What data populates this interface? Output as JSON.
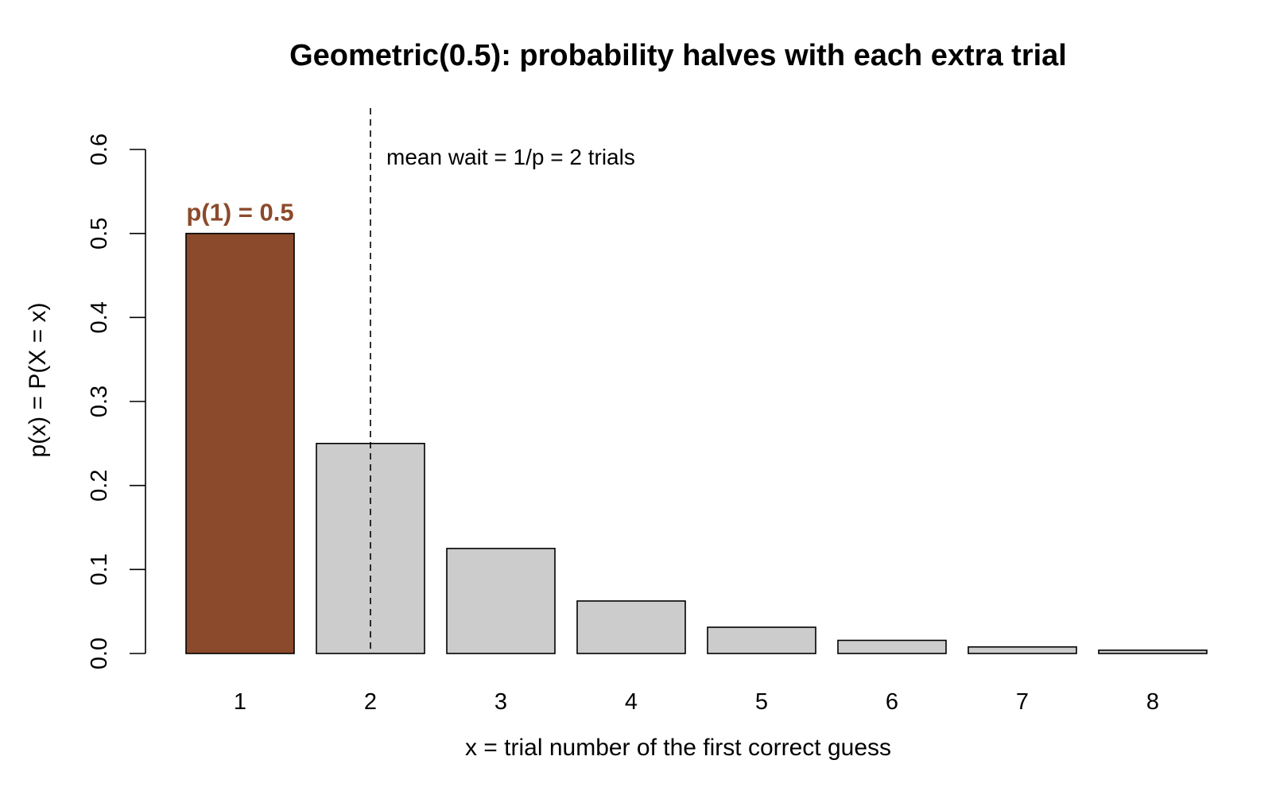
{
  "chart_data": {
    "type": "bar",
    "title": "Geometric(0.5): probability halves with each extra trial",
    "xlabel": "x = trial number of the first correct guess",
    "ylabel": "p(x) = P(X = x)",
    "categories": [
      "1",
      "2",
      "3",
      "4",
      "5",
      "6",
      "7",
      "8"
    ],
    "values": [
      0.5,
      0.25,
      0.125,
      0.0625,
      0.03125,
      0.015625,
      0.0078125,
      0.00390625
    ],
    "ylim": [
      0,
      0.6
    ],
    "yticks": [
      0.0,
      0.1,
      0.2,
      0.3,
      0.4,
      0.5,
      0.6
    ],
    "ytick_labels": [
      "0.0",
      "0.1",
      "0.2",
      "0.3",
      "0.4",
      "0.5",
      "0.6"
    ],
    "grid": false,
    "highlight_index": 0,
    "colors": {
      "highlight": "#8B4A2B",
      "bar": "#CCCCCC",
      "edge": "#000000"
    },
    "annotations": {
      "bar_label": "p(1) = 0.5",
      "mean_line_x": 2,
      "mean_text": "mean wait = 1/p = 2 trials"
    }
  }
}
